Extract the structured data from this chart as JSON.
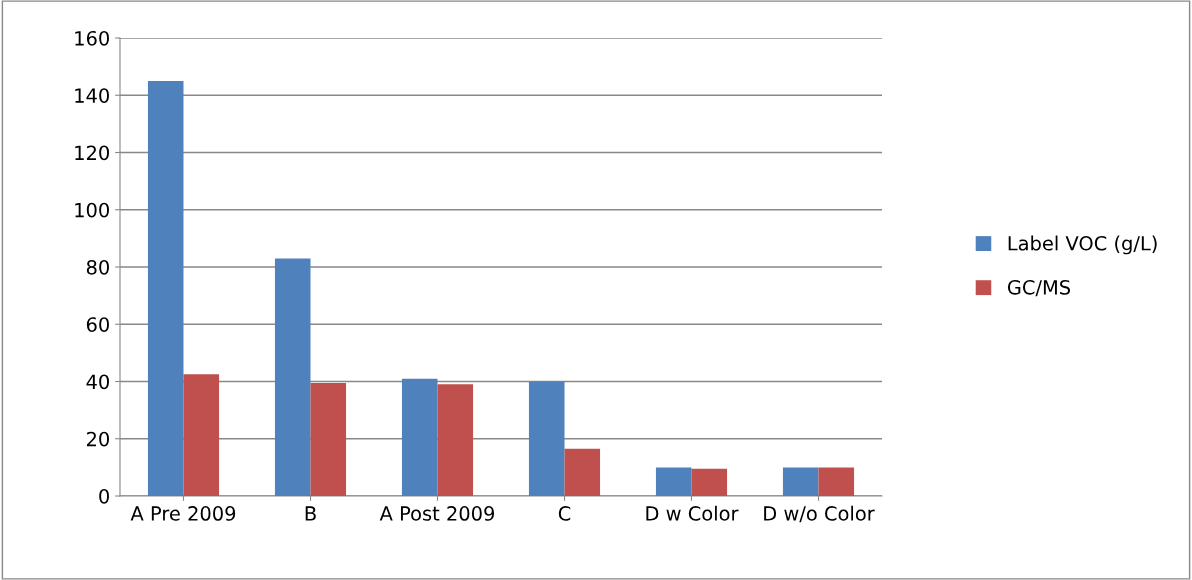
{
  "chart_data": {
    "type": "bar",
    "categories": [
      "A Pre 2009",
      "B",
      "A Post 2009",
      "C",
      "D w Color",
      "D w/o Color"
    ],
    "series": [
      {
        "name": "Label VOC (g/L)",
        "color": "#4f81bd",
        "values": [
          145,
          83,
          41,
          40,
          10,
          10
        ]
      },
      {
        "name": "GC/MS",
        "color": "#c0504d",
        "values": [
          42.5,
          39.5,
          39,
          16.5,
          9.5,
          10
        ]
      }
    ],
    "ylim": [
      0,
      160
    ],
    "yticks": [
      0,
      20,
      40,
      60,
      80,
      100,
      120,
      140,
      160
    ],
    "grid": "y",
    "legend": "right"
  }
}
